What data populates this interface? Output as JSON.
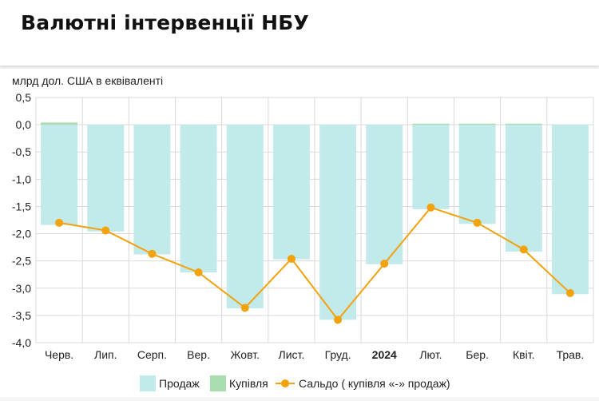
{
  "header": {
    "title": "Валютні інтервенції НБУ"
  },
  "colors": {
    "sales": "#c2eaea",
    "purchases": "#a9dcae",
    "balance": "#f2a20c",
    "grid": "#d9d9d9",
    "axis_text": "#222222"
  },
  "chart_data": {
    "type": "bar",
    "title": "",
    "ylabel": "млрд дол. США в еквіваленті",
    "ylim": [
      -4.0,
      0.5
    ],
    "yticks": [
      "0,5",
      "0,0",
      "-0,5",
      "-1,0",
      "-1,5",
      "-2,0",
      "-2,5",
      "-3,0",
      "-3,5",
      "-4,0"
    ],
    "ytick_values": [
      0.5,
      0.0,
      -0.5,
      -1.0,
      -1.5,
      -2.0,
      -2.5,
      -3.0,
      -3.5,
      -4.0
    ],
    "categories": [
      "Черв.",
      "Лип.",
      "Серп.",
      "Вер.",
      "Жовт.",
      "Лист.",
      "Груд.",
      "2024",
      "Лют.",
      "Бер.",
      "Квіт.",
      "Трав."
    ],
    "bold_categories": [
      "2024"
    ],
    "grid": true,
    "legend_position": "bottom",
    "series": [
      {
        "name": "Продаж",
        "kind": "bar",
        "color_key": "sales",
        "values": [
          -1.84,
          -1.96,
          -2.38,
          -2.71,
          -3.37,
          -2.47,
          -3.58,
          -2.56,
          -1.55,
          -1.82,
          -2.33,
          -3.11
        ]
      },
      {
        "name": "Купівля",
        "kind": "bar",
        "color_key": "purchases",
        "values": [
          0.04,
          0.0,
          0.0,
          0.0,
          0.0,
          0.0,
          0.0,
          0.0,
          0.02,
          0.02,
          0.02,
          0.0
        ]
      },
      {
        "name": "Сальдо ( купівля «-» продаж)",
        "kind": "line",
        "color_key": "balance",
        "values": [
          -1.8,
          -1.94,
          -2.37,
          -2.71,
          -3.36,
          -2.46,
          -3.58,
          -2.55,
          -1.52,
          -1.8,
          -2.29,
          -3.09
        ]
      }
    ]
  }
}
